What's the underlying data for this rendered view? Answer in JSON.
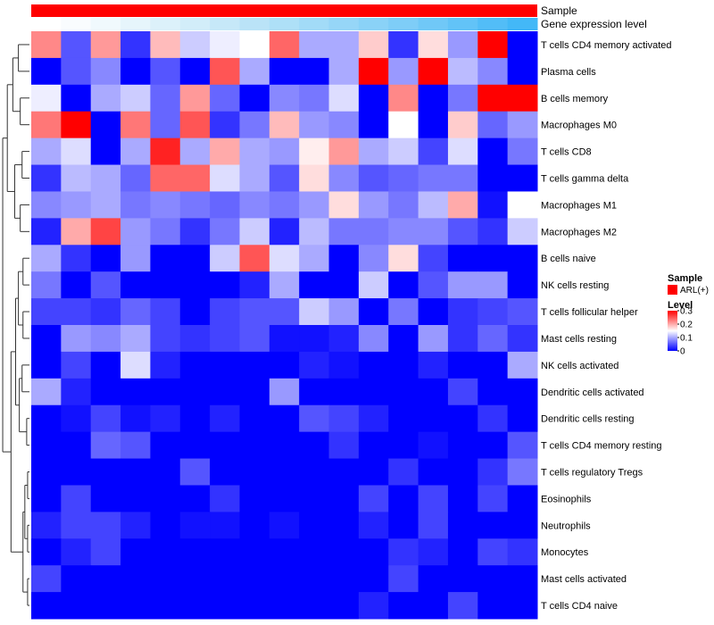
{
  "chart_data": {
    "type": "heatmap",
    "annotation_rows": [
      {
        "name": "Sample",
        "color": "#ff0000"
      },
      {
        "name": "Gene expression level",
        "colors": [
          "#ffffff",
          "#f9fcfe",
          "#f0f9fd",
          "#e6f5fb",
          "#dcf1fa",
          "#d2edf9",
          "#c6e8f8",
          "#bae3f7",
          "#aee0f7",
          "#a2dbf7",
          "#96d6f7",
          "#8ad2f7",
          "#7ecdf7",
          "#70c8f7",
          "#62c3f7",
          "#52bdf7",
          "#43b8f7"
        ]
      }
    ],
    "columns": 17,
    "rows": [
      "T cells CD4 memory activated",
      "Plasma cells",
      "B cells memory",
      "Macrophages M0",
      "T cells CD8",
      "T cells gamma delta",
      "Macrophages M1",
      "Macrophages M2",
      "B cells naive",
      "NK cells resting",
      "T cells follicular helper",
      "Mast cells resting",
      "NK cells activated",
      "Dendritic cells activated",
      "Dendritic cells resting",
      "T cells CD4 memory resting",
      "T cells regulatory  Tregs",
      "Eosinophils",
      "Neutrophils",
      "Monocytes",
      "Mast cells activated",
      "T cells CD4 naive"
    ],
    "values": [
      [
        0.22,
        0.05,
        0.21,
        0.03,
        0.19,
        0.12,
        0.14,
        0.15,
        0.24,
        0.1,
        0.1,
        0.18,
        0.03,
        0.17,
        0.09,
        0.3,
        0.0
      ],
      [
        0.0,
        0.05,
        0.08,
        0.0,
        0.05,
        0.0,
        0.25,
        0.1,
        0.0,
        0.0,
        0.1,
        0.3,
        0.09,
        0.3,
        0.11,
        0.08,
        0.0
      ],
      [
        0.14,
        0.0,
        0.1,
        0.12,
        0.06,
        0.21,
        0.06,
        0.0,
        0.08,
        0.07,
        0.13,
        0.0,
        0.22,
        0.0,
        0.07,
        0.3,
        0.3
      ],
      [
        0.23,
        0.3,
        0.0,
        0.23,
        0.06,
        0.25,
        0.03,
        0.07,
        0.19,
        0.09,
        0.08,
        0.0,
        0.15,
        0.0,
        0.18,
        0.06,
        0.09
      ],
      [
        0.1,
        0.13,
        0.0,
        0.1,
        0.28,
        0.1,
        0.2,
        0.1,
        0.09,
        0.16,
        0.21,
        0.1,
        0.12,
        0.04,
        0.13,
        0.0,
        0.07
      ],
      [
        0.03,
        0.11,
        0.1,
        0.06,
        0.24,
        0.24,
        0.13,
        0.1,
        0.05,
        0.17,
        0.08,
        0.05,
        0.06,
        0.07,
        0.07,
        0.0,
        0.0
      ],
      [
        0.08,
        0.09,
        0.1,
        0.07,
        0.08,
        0.07,
        0.06,
        0.08,
        0.07,
        0.09,
        0.17,
        0.09,
        0.07,
        0.11,
        0.2,
        0.01,
        0.15
      ],
      [
        0.02,
        0.2,
        0.26,
        0.09,
        0.07,
        0.03,
        0.07,
        0.12,
        0.02,
        0.11,
        0.07,
        0.07,
        0.08,
        0.08,
        0.05,
        0.03,
        0.12
      ],
      [
        0.1,
        0.03,
        0.0,
        0.09,
        0.0,
        0.0,
        0.12,
        0.25,
        0.13,
        0.1,
        0.0,
        0.08,
        0.17,
        0.04,
        0.0,
        0.0,
        0.0
      ],
      [
        0.07,
        0.0,
        0.05,
        0.0,
        0.0,
        0.0,
        0.0,
        0.02,
        0.1,
        0.0,
        0.0,
        0.12,
        0.0,
        0.05,
        0.09,
        0.09,
        0.0
      ],
      [
        0.04,
        0.04,
        0.03,
        0.06,
        0.04,
        0.0,
        0.04,
        0.05,
        0.05,
        0.12,
        0.09,
        0.0,
        0.07,
        0.0,
        0.03,
        0.04,
        0.05
      ],
      [
        0.0,
        0.09,
        0.08,
        0.1,
        0.04,
        0.03,
        0.04,
        0.05,
        0.01,
        0.01,
        0.02,
        0.08,
        0.0,
        0.09,
        0.03,
        0.06,
        0.03
      ],
      [
        0.0,
        0.04,
        0.0,
        0.13,
        0.02,
        0.0,
        0.0,
        0.0,
        0.0,
        0.02,
        0.01,
        0.0,
        0.0,
        0.02,
        0.0,
        0.0,
        0.1
      ],
      [
        0.1,
        0.02,
        0.0,
        0.0,
        0.0,
        0.0,
        0.0,
        0.0,
        0.09,
        0.0,
        0.0,
        0.0,
        0.0,
        0.0,
        0.04,
        0.0,
        0.0
      ],
      [
        0.0,
        0.01,
        0.04,
        0.01,
        0.02,
        0.0,
        0.02,
        0.0,
        0.0,
        0.05,
        0.04,
        0.02,
        0.0,
        0.0,
        0.0,
        0.03,
        0.0
      ],
      [
        0.0,
        0.0,
        0.06,
        0.05,
        0.0,
        0.0,
        0.0,
        0.0,
        0.0,
        0.0,
        0.03,
        0.0,
        0.0,
        0.01,
        0.0,
        0.0,
        0.05
      ],
      [
        0.0,
        0.0,
        0.0,
        0.0,
        0.0,
        0.05,
        0.0,
        0.0,
        0.0,
        0.0,
        0.0,
        0.0,
        0.03,
        0.0,
        0.0,
        0.03,
        0.07
      ],
      [
        0.0,
        0.04,
        0.0,
        0.0,
        0.0,
        0.0,
        0.03,
        0.0,
        0.0,
        0.0,
        0.0,
        0.04,
        0.0,
        0.04,
        0.0,
        0.04,
        0.0
      ],
      [
        0.02,
        0.04,
        0.04,
        0.02,
        0.0,
        0.01,
        0.01,
        0.0,
        0.01,
        0.0,
        0.0,
        0.02,
        0.0,
        0.04,
        0.0,
        0.0,
        0.0
      ],
      [
        0.0,
        0.02,
        0.04,
        0.0,
        0.0,
        0.0,
        0.0,
        0.0,
        0.0,
        0.0,
        0.0,
        0.0,
        0.03,
        0.02,
        0.0,
        0.04,
        0.03
      ],
      [
        0.04,
        0.0,
        0.0,
        0.0,
        0.0,
        0.0,
        0.0,
        0.0,
        0.0,
        0.0,
        0.0,
        0.0,
        0.04,
        0.0,
        0.0,
        0.0,
        0.0
      ],
      [
        0.0,
        0.0,
        0.0,
        0.0,
        0.0,
        0.0,
        0.0,
        0.0,
        0.0,
        0.0,
        0.0,
        0.02,
        0.0,
        0.0,
        0.04,
        0.0,
        0.0
      ]
    ],
    "color_scale": {
      "min": 0,
      "mid": 0.15,
      "max": 0.3,
      "low": "#0000ff",
      "midColor": "#ffffff",
      "high": "#ff0000"
    },
    "legend": {
      "sample_title": "Sample",
      "sample_item": "ARL(+)",
      "sample_color": "#ff0000",
      "level_title": "Level",
      "level_ticks": [
        "0.3",
        "0.2",
        "0.1",
        "0"
      ],
      "level_tick_values": [
        0.3,
        0.2,
        0.1,
        0.0
      ],
      "position": "right"
    },
    "dendrogram": {
      "leaves": 22,
      "merges": [
        [
          1,
          2,
          0.12
        ],
        [
          3,
          4,
          0.1
        ],
        [
          5,
          6,
          0.08
        ],
        [
          7,
          8,
          0.1
        ],
        [
          9,
          10,
          0.07
        ],
        [
          11,
          12,
          0.07
        ],
        [
          13,
          14,
          0.08
        ],
        [
          15,
          16,
          0.03
        ],
        [
          17,
          18,
          0.02
        ],
        [
          19,
          20,
          0.02
        ],
        [
          21,
          22,
          0.02
        ]
      ]
    }
  }
}
